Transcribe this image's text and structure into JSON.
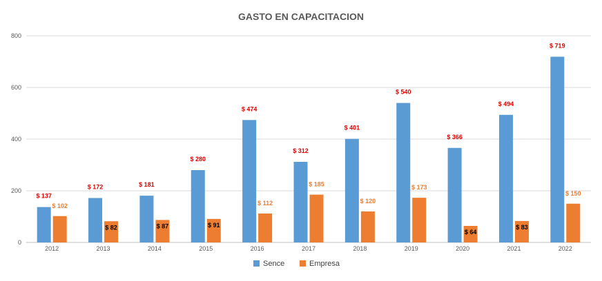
{
  "chart_data": {
    "type": "bar",
    "title": "GASTO EN CAPACITACION",
    "xlabel": "",
    "ylabel": "",
    "ylim": [
      0,
      800
    ],
    "yticks": [
      "0",
      "200",
      "400",
      "600",
      "800"
    ],
    "grid": true,
    "legend_position": "bottom",
    "categories": [
      "2012",
      "2013",
      "2014",
      "2015",
      "2016",
      "2017",
      "2018",
      "2019",
      "2020",
      "2021",
      "2022"
    ],
    "series": [
      {
        "name": "Sence",
        "color": "#5B9BD5",
        "label_color": "#E00000",
        "values": [
          137,
          172,
          181,
          280,
          474,
          312,
          401,
          540,
          366,
          494,
          719
        ],
        "labels": [
          "$ 137",
          "$ 172",
          "$ 181",
          "$ 280",
          "$ 474",
          "$ 312",
          "$ 401",
          "$ 540",
          "$ 366",
          "$ 494",
          "$ 719"
        ]
      },
      {
        "name": "Empresa",
        "color": "#ED7D31",
        "values": [
          102,
          82,
          87,
          91,
          112,
          185,
          120,
          173,
          64,
          83,
          150
        ],
        "labels": [
          "$ 102",
          "$ 82",
          "$ 87",
          "$ 91",
          "$ 112",
          "$ 185",
          "$ 120",
          "$ 173",
          "$ 64",
          "$ 83",
          "$ 150"
        ],
        "label_colors": [
          "#ED7D31",
          "#000000",
          "#000000",
          "#000000",
          "#ED7D31",
          "#ED7D31",
          "#ED7D31",
          "#ED7D31",
          "#000000",
          "#000000",
          "#ED7D31"
        ],
        "label_inside": [
          false,
          true,
          true,
          true,
          false,
          false,
          false,
          false,
          true,
          true,
          false
        ]
      }
    ]
  }
}
